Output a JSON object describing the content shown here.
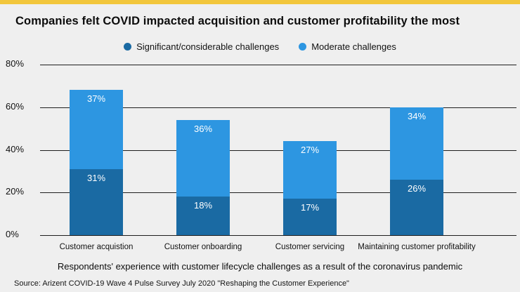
{
  "page": {
    "title": "Companies felt COVID impacted acquisition and customer profitability the most",
    "caption": "Respondents' experience with customer lifecycle challenges as a result of the coronavirus pandemic",
    "source": "Source: Arizent COVID-19 Wave 4 Pulse Survey July 2020 \"Reshaping the Customer Experience\"",
    "accent_bar_color": "#f2c63c",
    "background_color": "#efefef"
  },
  "chart_data": {
    "type": "bar",
    "stacked": true,
    "title": "Companies felt COVID impacted acquisition and customer profitability the most",
    "categories": [
      "Customer acquistion",
      "Customer onboarding",
      "Customer servicing",
      "Maintaining customer profitability"
    ],
    "series": [
      {
        "name": "Significant/considerable challenges",
        "color": "#1a6aa3",
        "values": [
          31,
          18,
          17,
          26
        ]
      },
      {
        "name": "Moderate challenges",
        "color": "#2d96e1",
        "values": [
          37,
          36,
          27,
          34
        ]
      }
    ],
    "totals": [
      68,
      54,
      44,
      60
    ],
    "xlabel": "",
    "ylabel": "",
    "ylim": [
      0,
      80
    ],
    "yticks": [
      "0%",
      "20%",
      "40%",
      "60%",
      "80%"
    ],
    "ytick_values": [
      0,
      20,
      40,
      60,
      80
    ],
    "grid": true,
    "legend_position": "top",
    "data_label_format": "percent"
  }
}
